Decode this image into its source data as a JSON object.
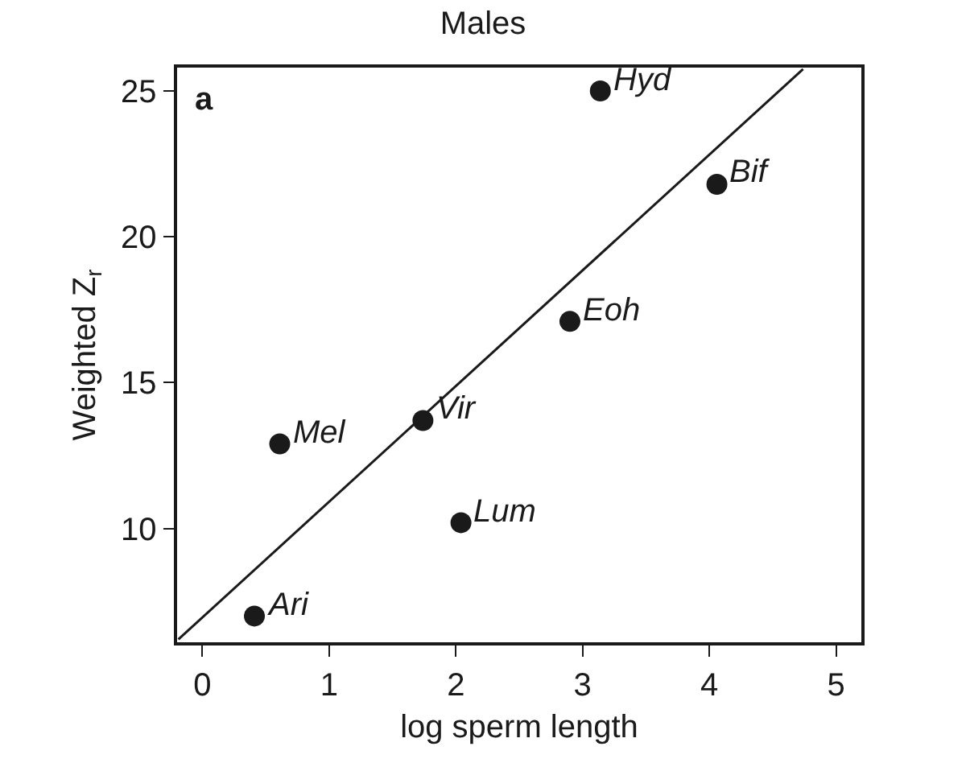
{
  "chart_data": {
    "type": "scatter",
    "title": "Males",
    "xlabel": "log sperm length",
    "ylabel": "Weighted Z$_{r}$",
    "x": [
      3.14,
      4.06,
      2.9,
      1.74,
      0.61,
      2.04,
      0.41
    ],
    "series": [
      {
        "color": "#1a1a1a",
        "values": [
          25.0,
          21.8,
          17.1,
          13.7,
          12.9,
          10.2,
          7.0
        ]
      },
      {
        "type": "line",
        "marker": "none",
        "color": "#1a1a1a",
        "x": [
          -0.19,
          4.74
        ],
        "values": [
          6.2,
          25.75
        ]
      }
    ],
    "marker": "circle",
    "line_style": "solid",
    "xlim": [
      -0.2,
      5.2
    ],
    "ylim": [
      6.1,
      25.8
    ],
    "xticks": [
      0,
      1,
      2,
      3,
      4,
      5
    ],
    "yticks": [
      10,
      15,
      20,
      25
    ],
    "grid": false,
    "annotations": [
      "a",
      {
        "text": "Hyd",
        "x": 3.14,
        "y": 25.0
      },
      {
        "text": "Bif",
        "x": 4.06,
        "y": 21.8
      },
      {
        "text": "Eoh",
        "x": 2.9,
        "y": 17.1
      },
      {
        "text": "Vir",
        "x": 1.74,
        "y": 13.7
      },
      {
        "text": "Mel",
        "x": 0.61,
        "y": 12.9
      },
      {
        "text": "Lum",
        "x": 2.04,
        "y": 10.2
      },
      {
        "text": "Ari",
        "x": 0.41,
        "y": 7.0
      }
    ]
  }
}
